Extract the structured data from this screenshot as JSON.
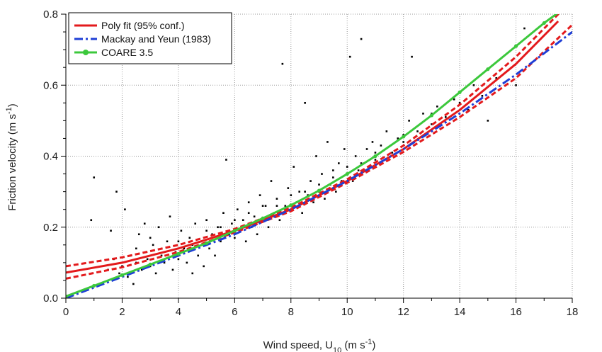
{
  "chart_data": {
    "type": "scatter",
    "xlabel": {
      "main": "Wind speed, U",
      "sub": "10",
      "units_open": " (m s",
      "sup": "-1",
      "units_close": ")"
    },
    "ylabel": {
      "main": "Friction velocity (m s",
      "sup": "-1",
      "close": ")"
    },
    "xlim": [
      0,
      18
    ],
    "ylim": [
      0,
      0.8
    ],
    "x_ticks": [
      0,
      2,
      4,
      6,
      8,
      10,
      12,
      14,
      16,
      18
    ],
    "x_tick_labels": [
      "0",
      "2",
      "4",
      "6",
      "8",
      "10",
      "12",
      "14",
      "16",
      "18"
    ],
    "y_ticks": [
      0.0,
      0.2,
      0.4,
      0.6,
      0.8
    ],
    "y_tick_labels": [
      "0.0",
      "0.2",
      "0.4",
      "0.6",
      "0.8"
    ],
    "grid": true,
    "legend_position": "top-left",
    "legend": [
      {
        "label": "Poly fit (95% conf.)",
        "color": "#e31a1c",
        "style": "solid"
      },
      {
        "label": "Mackay and Yeun (1983)",
        "color": "#1f3fd6",
        "style": "dashdot"
      },
      {
        "label": "COARE 3.5",
        "color": "#3cc83c",
        "style": "solid-marker"
      }
    ],
    "series": [
      {
        "name": "Poly fit (95% conf.)",
        "role": "fit",
        "color": "#e31a1c",
        "x": [
          0,
          2,
          4,
          6,
          8,
          10,
          12,
          14,
          16,
          17.5
        ],
        "y": [
          0.072,
          0.1,
          0.14,
          0.19,
          0.25,
          0.33,
          0.42,
          0.53,
          0.66,
          0.78
        ]
      },
      {
        "name": "Poly fit upper 95%",
        "role": "conf_upper",
        "color": "#e31a1c",
        "x": [
          0,
          2,
          4,
          6,
          8,
          10,
          12,
          14,
          16,
          18
        ],
        "y": [
          0.09,
          0.115,
          0.15,
          0.195,
          0.255,
          0.335,
          0.43,
          0.545,
          0.68,
          0.84
        ]
      },
      {
        "name": "Poly fit lower 95%",
        "role": "conf_lower",
        "color": "#e31a1c",
        "x": [
          0,
          2,
          4,
          6,
          8,
          10,
          12,
          14,
          16,
          18
        ],
        "y": [
          0.055,
          0.087,
          0.13,
          0.185,
          0.245,
          0.325,
          0.412,
          0.51,
          0.62,
          0.77
        ]
      },
      {
        "name": "Mackay and Yeun (1983)",
        "role": "model",
        "color": "#1f3fd6",
        "x": [
          0,
          2,
          4,
          6,
          8,
          10,
          12,
          14,
          16,
          18
        ],
        "y": [
          0.0,
          0.06,
          0.12,
          0.18,
          0.25,
          0.33,
          0.42,
          0.52,
          0.63,
          0.75
        ]
      },
      {
        "name": "COARE 3.5",
        "role": "model",
        "color": "#3cc83c",
        "x": [
          0,
          1,
          2,
          3,
          4,
          5,
          6,
          7,
          8,
          9,
          10,
          11,
          12,
          13,
          14,
          15,
          16,
          17,
          17.6
        ],
        "y": [
          0.005,
          0.035,
          0.065,
          0.095,
          0.125,
          0.155,
          0.19,
          0.225,
          0.262,
          0.303,
          0.35,
          0.4,
          0.455,
          0.515,
          0.58,
          0.645,
          0.71,
          0.775,
          0.81
        ]
      }
    ],
    "scatter_points": {
      "name": "observations",
      "color": "#000000",
      "points": [
        [
          1.0,
          0.34
        ],
        [
          0.9,
          0.22
        ],
        [
          1.5,
          0.08
        ],
        [
          1.6,
          0.19
        ],
        [
          1.7,
          0.11
        ],
        [
          1.8,
          0.3
        ],
        [
          1.9,
          0.07
        ],
        [
          2.0,
          0.09
        ],
        [
          2.1,
          0.25
        ],
        [
          2.2,
          0.06
        ],
        [
          2.3,
          0.12
        ],
        [
          2.4,
          0.04
        ],
        [
          2.5,
          0.1
        ],
        [
          2.6,
          0.18
        ],
        [
          2.7,
          0.08
        ],
        [
          2.8,
          0.21
        ],
        [
          2.9,
          0.11
        ],
        [
          3.0,
          0.09
        ],
        [
          3.1,
          0.15
        ],
        [
          3.2,
          0.07
        ],
        [
          3.3,
          0.2
        ],
        [
          3.4,
          0.12
        ],
        [
          3.5,
          0.1
        ],
        [
          3.6,
          0.16
        ],
        [
          3.7,
          0.23
        ],
        [
          3.8,
          0.08
        ],
        [
          3.9,
          0.13
        ],
        [
          4.0,
          0.11
        ],
        [
          4.1,
          0.19
        ],
        [
          4.2,
          0.14
        ],
        [
          4.3,
          0.1
        ],
        [
          4.4,
          0.17
        ],
        [
          4.5,
          0.07
        ],
        [
          4.6,
          0.21
        ],
        [
          4.7,
          0.12
        ],
        [
          4.8,
          0.16
        ],
        [
          4.9,
          0.09
        ],
        [
          5.0,
          0.22
        ],
        [
          5.1,
          0.14
        ],
        [
          5.2,
          0.18
        ],
        [
          5.3,
          0.12
        ],
        [
          5.4,
          0.2
        ],
        [
          5.5,
          0.16
        ],
        [
          5.6,
          0.24
        ],
        [
          5.7,
          0.39
        ],
        [
          5.8,
          0.18
        ],
        [
          5.9,
          0.21
        ],
        [
          6.0,
          0.17
        ],
        [
          6.1,
          0.25
        ],
        [
          6.2,
          0.19
        ],
        [
          6.3,
          0.22
        ],
        [
          6.4,
          0.16
        ],
        [
          6.5,
          0.27
        ],
        [
          6.6,
          0.2
        ],
        [
          6.7,
          0.23
        ],
        [
          6.8,
          0.18
        ],
        [
          6.9,
          0.29
        ],
        [
          7.0,
          0.22
        ],
        [
          7.1,
          0.26
        ],
        [
          7.2,
          0.2
        ],
        [
          7.3,
          0.33
        ],
        [
          7.4,
          0.24
        ],
        [
          7.5,
          0.28
        ],
        [
          7.6,
          0.22
        ],
        [
          7.7,
          0.66
        ],
        [
          7.8,
          0.26
        ],
        [
          7.9,
          0.31
        ],
        [
          8.0,
          0.25
        ],
        [
          8.1,
          0.37
        ],
        [
          8.2,
          0.27
        ],
        [
          8.3,
          0.3
        ],
        [
          8.4,
          0.24
        ],
        [
          8.5,
          0.55
        ],
        [
          8.6,
          0.29
        ],
        [
          8.7,
          0.33
        ],
        [
          8.8,
          0.27
        ],
        [
          8.9,
          0.4
        ],
        [
          9.0,
          0.3
        ],
        [
          9.1,
          0.35
        ],
        [
          9.2,
          0.28
        ],
        [
          9.3,
          0.44
        ],
        [
          9.4,
          0.32
        ],
        [
          9.5,
          0.36
        ],
        [
          9.6,
          0.3
        ],
        [
          9.7,
          0.38
        ],
        [
          9.8,
          0.33
        ],
        [
          9.9,
          0.42
        ],
        [
          10.0,
          0.35
        ],
        [
          10.1,
          0.68
        ],
        [
          10.2,
          0.33
        ],
        [
          10.3,
          0.4
        ],
        [
          10.4,
          0.36
        ],
        [
          10.5,
          0.73
        ],
        [
          10.6,
          0.38
        ],
        [
          10.7,
          0.42
        ],
        [
          10.8,
          0.37
        ],
        [
          10.9,
          0.44
        ],
        [
          11.0,
          0.39
        ],
        [
          11.2,
          0.43
        ],
        [
          11.4,
          0.47
        ],
        [
          11.6,
          0.41
        ],
        [
          11.8,
          0.45
        ],
        [
          12.0,
          0.44
        ],
        [
          12.2,
          0.5
        ],
        [
          12.3,
          0.68
        ],
        [
          12.5,
          0.47
        ],
        [
          12.7,
          0.52
        ],
        [
          13.0,
          0.49
        ],
        [
          13.2,
          0.54
        ],
        [
          13.5,
          0.51
        ],
        [
          13.8,
          0.56
        ],
        [
          14.0,
          0.58
        ],
        [
          14.3,
          0.53
        ],
        [
          14.5,
          0.6
        ],
        [
          14.8,
          0.57
        ],
        [
          15.0,
          0.5
        ],
        [
          15.3,
          0.62
        ],
        [
          16.0,
          0.6
        ],
        [
          16.3,
          0.76
        ],
        [
          2.5,
          0.14
        ],
        [
          3.0,
          0.17
        ],
        [
          3.5,
          0.13
        ],
        [
          4.0,
          0.16
        ],
        [
          4.5,
          0.15
        ],
        [
          5.0,
          0.19
        ],
        [
          5.5,
          0.2
        ],
        [
          6.0,
          0.22
        ],
        [
          6.5,
          0.24
        ],
        [
          7.0,
          0.26
        ],
        [
          7.5,
          0.26
        ],
        [
          8.0,
          0.29
        ],
        [
          8.5,
          0.3
        ],
        [
          9.0,
          0.32
        ],
        [
          9.5,
          0.34
        ],
        [
          10.0,
          0.37
        ],
        [
          10.5,
          0.38
        ],
        [
          11.0,
          0.41
        ],
        [
          12.0,
          0.46
        ],
        [
          13.0,
          0.52
        ],
        [
          14.0,
          0.55
        ]
      ]
    }
  }
}
